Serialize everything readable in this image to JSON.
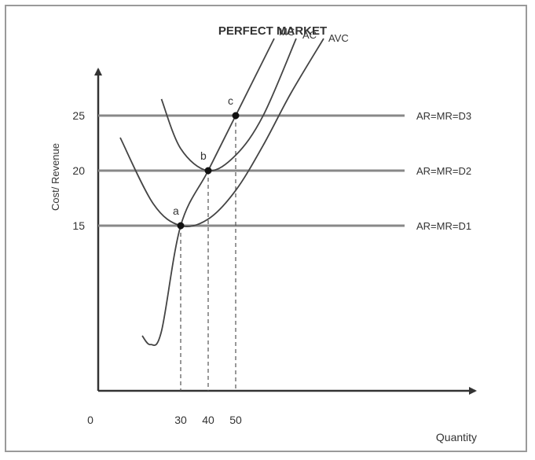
{
  "chart_data": {
    "type": "line",
    "title": "PERFECT MARKET",
    "xlabel": "Quantity",
    "ylabel": "Cost/ Revenue",
    "origin_label": "0",
    "x_ticks": [
      30,
      40,
      50
    ],
    "y_ticks": [
      15,
      20,
      25
    ],
    "xlim": [
      0,
      140
    ],
    "ylim": [
      0,
      30
    ],
    "grid": false,
    "series": [
      {
        "name": "MC",
        "x": [
          16,
          19,
          23,
          30,
          40,
          50,
          64
        ],
        "y": [
          5,
          4.2,
          5.4,
          15,
          20,
          25,
          32
        ]
      },
      {
        "name": "AC",
        "x": [
          23,
          30,
          40,
          50,
          60,
          72
        ],
        "y": [
          26.5,
          22,
          20,
          21.4,
          25,
          32
        ]
      },
      {
        "name": "AVC",
        "x": [
          8,
          20,
          30,
          40,
          50,
          60,
          70,
          82
        ],
        "y": [
          23,
          17,
          15,
          15.6,
          18.2,
          22.3,
          27,
          32
        ]
      }
    ],
    "price_lines": [
      {
        "name": "AR=MR=D3",
        "y": 25
      },
      {
        "name": "AR=MR=D2",
        "y": 20
      },
      {
        "name": "AR=MR=D1",
        "y": 15
      }
    ],
    "points": [
      {
        "name": "a",
        "x": 30,
        "y": 15
      },
      {
        "name": "b",
        "x": 40,
        "y": 20
      },
      {
        "name": "c",
        "x": 50,
        "y": 25
      }
    ]
  },
  "colors": {
    "axis": "#333333",
    "curve": "#444444",
    "price_line": "#888888",
    "text": "#333333"
  }
}
